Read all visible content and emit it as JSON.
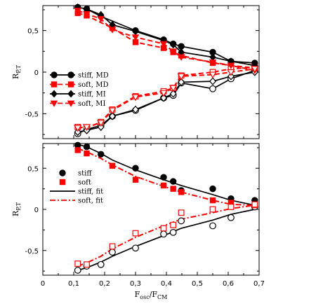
{
  "chart_data": [
    {
      "type": "line",
      "panel": "top",
      "ylabel": "R",
      "ylabel_sub": "P,T",
      "xlim": [
        0,
        0.7
      ],
      "ylim": [
        -0.8,
        0.8
      ],
      "grid": false,
      "legend_position": "left",
      "xticks": [],
      "yticks": [
        "0,5",
        "0",
        "-0,5"
      ],
      "yticks_values": [
        0.5,
        0,
        -0.5
      ],
      "legend": [
        {
          "label": "stiff, MD",
          "color": "#000000",
          "marker": "circle",
          "dash": "solid"
        },
        {
          "label": "soft, MD",
          "color": "#ff0000",
          "marker": "square",
          "dash": "dashed"
        },
        {
          "label": "stiff, MI",
          "color": "#000000",
          "marker": "diamond",
          "dash": "solid"
        },
        {
          "label": "soft, MI",
          "color": "#ff0000",
          "marker": "triangle-down",
          "dash": "dashed"
        }
      ],
      "series": [
        {
          "name": "stiff, MD",
          "color": "#000000",
          "marker": "circle",
          "dash": "solid",
          "x": [
            0.113,
            0.142,
            0.188,
            0.3,
            0.391,
            0.422,
            0.448,
            0.55,
            0.609,
            0.686
          ],
          "y": [
            0.78,
            0.76,
            0.67,
            0.5,
            0.39,
            0.34,
            0.31,
            0.24,
            0.13,
            0.11
          ]
        },
        {
          "name": "stiff, MD (lower)",
          "color": "#000000",
          "marker": "circle-open",
          "dash": "solid",
          "x": [
            0.113,
            0.142,
            0.188,
            0.225,
            0.3,
            0.391,
            0.422,
            0.448,
            0.55,
            0.609,
            0.686
          ],
          "y": [
            -0.74,
            -0.69,
            -0.64,
            -0.53,
            -0.46,
            -0.31,
            -0.28,
            -0.13,
            -0.2,
            -0.08,
            0.02
          ]
        },
        {
          "name": "soft, MD",
          "color": "#ff0000",
          "marker": "square",
          "dash": "dashed",
          "x": [
            0.113,
            0.142,
            0.225,
            0.3,
            0.391,
            0.422,
            0.448,
            0.55,
            0.609,
            0.686
          ],
          "y": [
            0.71,
            0.68,
            0.53,
            0.36,
            0.29,
            0.24,
            0.2,
            0.11,
            0.08,
            0.05
          ]
        },
        {
          "name": "soft, MD (lower)",
          "color": "#ff0000",
          "marker": "square-open",
          "dash": "dashed",
          "x": [
            0.113,
            0.142,
            0.188,
            0.225,
            0.3,
            0.391,
            0.422,
            0.448,
            0.55,
            0.609,
            0.686
          ],
          "y": [
            -0.66,
            -0.67,
            -0.6,
            -0.45,
            -0.29,
            -0.23,
            -0.19,
            -0.04,
            0.0,
            0.04,
            0.06
          ]
        },
        {
          "name": "stiff, MI",
          "color": "#000000",
          "marker": "diamond",
          "dash": "solid",
          "x": [
            0.113,
            0.142,
            0.188,
            0.225,
            0.3,
            0.391,
            0.422,
            0.448,
            0.55,
            0.609,
            0.686
          ],
          "y": [
            0.78,
            0.76,
            0.69,
            0.57,
            0.49,
            0.38,
            0.33,
            0.24,
            0.18,
            0.13,
            0.08
          ]
        },
        {
          "name": "stiff, MI (lower)",
          "color": "#000000",
          "marker": "diamond-open",
          "dash": "solid",
          "x": [
            0.113,
            0.142,
            0.188,
            0.225,
            0.3,
            0.391,
            0.422,
            0.448,
            0.55,
            0.609,
            0.686
          ],
          "y": [
            -0.72,
            -0.7,
            -0.66,
            -0.53,
            -0.45,
            -0.31,
            -0.26,
            -0.12,
            -0.11,
            -0.05,
            0.0
          ]
        },
        {
          "name": "soft, MI",
          "color": "#ff0000",
          "marker": "triangle-down",
          "dash": "dashed",
          "x": [
            0.113,
            0.142,
            0.188,
            0.225,
            0.3,
            0.391,
            0.422,
            0.448,
            0.55,
            0.609,
            0.686
          ],
          "y": [
            0.74,
            0.7,
            0.64,
            0.51,
            0.42,
            0.34,
            0.25,
            0.18,
            0.12,
            0.08,
            0.02
          ]
        },
        {
          "name": "soft, MI (lower)",
          "color": "#ff0000",
          "marker": "triangle-down-open",
          "dash": "dashed",
          "x": [
            0.113,
            0.142,
            0.188,
            0.225,
            0.3,
            0.391,
            0.422,
            0.448,
            0.55,
            0.609,
            0.686
          ],
          "y": [
            -0.67,
            -0.66,
            -0.61,
            -0.46,
            -0.3,
            -0.25,
            -0.19,
            -0.05,
            -0.03,
            0.0,
            0.04
          ]
        }
      ]
    },
    {
      "type": "scatter",
      "panel": "bottom",
      "ylabel": "R",
      "ylabel_sub": "P,T",
      "xlabel": "F",
      "xlabel_sub1": "osc",
      "xlabel_mid": "/F",
      "xlabel_sub2": "CM",
      "xlim": [
        0,
        0.7
      ],
      "ylim": [
        -0.8,
        0.8
      ],
      "grid": false,
      "legend_position": "left",
      "xticks": [
        "0",
        "0,1",
        "0,2",
        "0,3",
        "0,4",
        "0,5",
        "0,6",
        "0,7"
      ],
      "xticks_values": [
        0,
        0.1,
        0.2,
        0.3,
        0.4,
        0.5,
        0.6,
        0.7
      ],
      "yticks": [
        "0,5",
        "0",
        "-0,5"
      ],
      "yticks_values": [
        0.5,
        0,
        -0.5
      ],
      "legend": [
        {
          "label": "stiff",
          "color": "#000000",
          "marker": "circle",
          "dash": "none"
        },
        {
          "label": "soft",
          "color": "#ff0000",
          "marker": "square",
          "dash": "none"
        },
        {
          "label": "stiff, fit",
          "color": "#000000",
          "marker": "none",
          "dash": "solid"
        },
        {
          "label": "soft, fit",
          "color": "#ff0000",
          "marker": "none",
          "dash": "dashdot"
        }
      ],
      "series": [
        {
          "name": "stiff",
          "color": "#000000",
          "marker": "circle",
          "dash": "none",
          "x": [
            0.113,
            0.142,
            0.188,
            0.3,
            0.391,
            0.422,
            0.448,
            0.55,
            0.609,
            0.686
          ],
          "y": [
            0.78,
            0.76,
            0.67,
            0.5,
            0.39,
            0.34,
            0.23,
            0.25,
            0.13,
            0.11
          ]
        },
        {
          "name": "stiff (lower)",
          "color": "#000000",
          "marker": "circle-open",
          "dash": "none",
          "x": [
            0.113,
            0.142,
            0.188,
            0.225,
            0.3,
            0.391,
            0.422,
            0.448,
            0.55,
            0.609,
            0.686
          ],
          "y": [
            -0.74,
            -0.69,
            -0.67,
            -0.52,
            -0.47,
            -0.3,
            -0.28,
            -0.14,
            -0.2,
            -0.1,
            0.03
          ]
        },
        {
          "name": "soft",
          "color": "#ff0000",
          "marker": "square",
          "dash": "none",
          "x": [
            0.113,
            0.142,
            0.225,
            0.3,
            0.391,
            0.422,
            0.448,
            0.55,
            0.609,
            0.686
          ],
          "y": [
            0.72,
            0.68,
            0.53,
            0.36,
            0.29,
            0.25,
            0.21,
            0.11,
            0.08,
            0.05
          ]
        },
        {
          "name": "soft (lower)",
          "color": "#ff0000",
          "marker": "square-open",
          "dash": "none",
          "x": [
            0.113,
            0.142,
            0.225,
            0.3,
            0.391,
            0.422,
            0.448,
            0.55,
            0.609,
            0.686
          ],
          "y": [
            -0.66,
            -0.67,
            -0.45,
            -0.29,
            -0.23,
            -0.19,
            -0.04,
            0.0,
            0.03,
            0.06
          ]
        },
        {
          "name": "stiff, fit",
          "color": "#000000",
          "marker": "none",
          "dash": "solid",
          "x": [
            0.113,
            0.142,
            0.188,
            0.225,
            0.3,
            0.391,
            0.448,
            0.55,
            0.609,
            0.686
          ],
          "y": [
            0.79,
            0.76,
            0.68,
            0.6,
            0.48,
            0.36,
            0.29,
            0.18,
            0.11,
            0.05
          ]
        },
        {
          "name": "stiff, fit (lower)",
          "color": "#000000",
          "marker": "none",
          "dash": "solid",
          "x": [
            0.113,
            0.142,
            0.188,
            0.225,
            0.3,
            0.391,
            0.448,
            0.55,
            0.609,
            0.686
          ],
          "y": [
            -0.74,
            -0.71,
            -0.64,
            -0.57,
            -0.45,
            -0.32,
            -0.23,
            -0.13,
            -0.06,
            0.0
          ]
        },
        {
          "name": "soft, fit",
          "color": "#ff0000",
          "marker": "none",
          "dash": "dashdot",
          "x": [
            0.113,
            0.142,
            0.188,
            0.225,
            0.3,
            0.391,
            0.448,
            0.55,
            0.609,
            0.686
          ],
          "y": [
            0.74,
            0.7,
            0.62,
            0.54,
            0.4,
            0.28,
            0.21,
            0.11,
            0.06,
            0.05
          ]
        },
        {
          "name": "soft, fit (lower)",
          "color": "#ff0000",
          "marker": "none",
          "dash": "dashdot",
          "x": [
            0.113,
            0.142,
            0.188,
            0.225,
            0.3,
            0.391,
            0.448,
            0.55,
            0.609,
            0.686
          ],
          "y": [
            -0.69,
            -0.65,
            -0.57,
            -0.48,
            -0.34,
            -0.2,
            -0.12,
            -0.04,
            0.01,
            0.05
          ]
        }
      ]
    }
  ]
}
